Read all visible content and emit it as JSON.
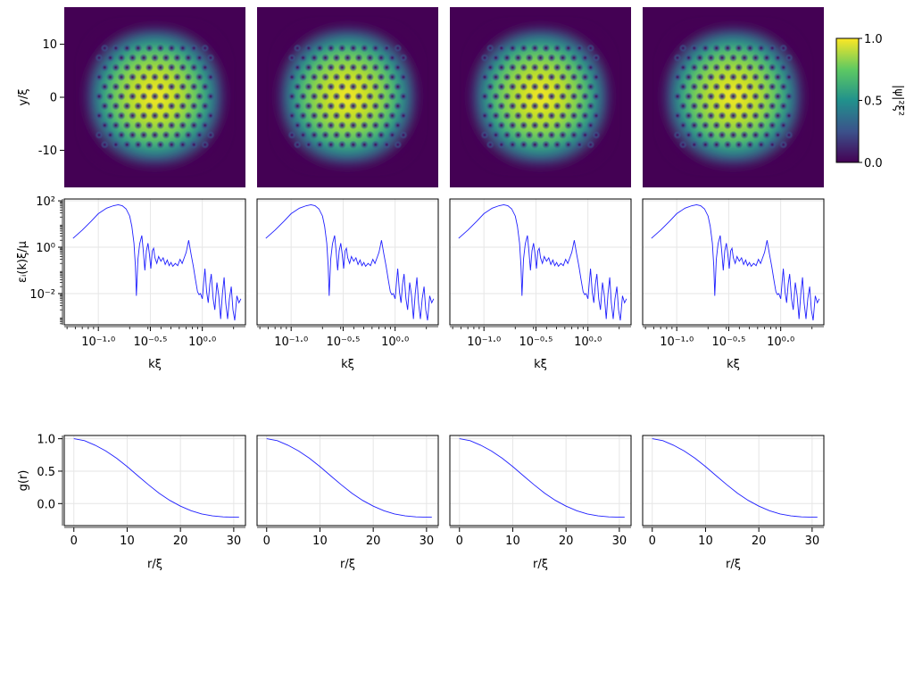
{
  "figure": {
    "colorbar": {
      "label": "|ψ|²ξ²",
      "ticks": [
        "1.0",
        "0.5",
        "0.0"
      ],
      "range": [
        0,
        1
      ],
      "colormap": [
        "#440154",
        "#3b528b",
        "#21918c",
        "#5ec962",
        "#fde725"
      ]
    }
  },
  "chart_data": [
    {
      "type": "heatmap",
      "panel": "density",
      "columns": 4,
      "ylabel": "y/ξ",
      "yticks": [
        "10",
        "0",
        "-10"
      ],
      "xlim": [
        -17,
        17
      ],
      "ylim": [
        -17,
        17
      ],
      "value_range": [
        0,
        1
      ],
      "description_values": {
        "lattice": "triangular vortex lattice",
        "cloud_radius": 12
      }
    },
    {
      "type": "line",
      "panel": "spectrum",
      "columns": 4,
      "xscale": "log",
      "yscale": "log",
      "xlabel": "kξ",
      "ylabel": "εᵢ(k)ξ/μ",
      "xticks": [
        "10⁻¹·⁰",
        "10⁻⁰·⁵",
        "10⁰·⁰"
      ],
      "yticks": [
        "10²",
        "10⁰",
        "10⁻²"
      ],
      "xlim": [
        0.047,
        2.6
      ],
      "ylim": [
        0.00045,
        120
      ],
      "series": [
        {
          "x": [
            0.057,
            0.07,
            0.085,
            0.1,
            0.12,
            0.14,
            0.155,
            0.17,
            0.185,
            0.2,
            0.21,
            0.22,
            0.227,
            0.232,
            0.24,
            0.25,
            0.262,
            0.27,
            0.28,
            0.29,
            0.3,
            0.31,
            0.32,
            0.33,
            0.34,
            0.35,
            0.365,
            0.38,
            0.4,
            0.42,
            0.44,
            0.46,
            0.48,
            0.5,
            0.52,
            0.55,
            0.58,
            0.61,
            0.64,
            0.67,
            0.7,
            0.74,
            0.78,
            0.82,
            0.86,
            0.9,
            0.93,
            0.96,
            1.0,
            1.03,
            1.06,
            1.1,
            1.14,
            1.18,
            1.22,
            1.27,
            1.32,
            1.38,
            1.44,
            1.5,
            1.56,
            1.62,
            1.68,
            1.75,
            1.82,
            1.9,
            1.97,
            2.05,
            2.15,
            2.25,
            2.35
          ],
          "y": [
            2.4,
            5.5,
            13,
            28,
            48,
            62,
            68,
            62,
            45,
            22,
            8,
            1.5,
            0.15,
            0.008,
            0.3,
            1.4,
            3.2,
            0.8,
            0.1,
            0.7,
            1.5,
            0.5,
            0.12,
            0.7,
            0.9,
            0.35,
            0.2,
            0.4,
            0.25,
            0.35,
            0.18,
            0.28,
            0.16,
            0.22,
            0.15,
            0.2,
            0.16,
            0.3,
            0.2,
            0.35,
            0.6,
            2.0,
            0.5,
            0.15,
            0.04,
            0.012,
            0.009,
            0.01,
            0.006,
            0.03,
            0.12,
            0.012,
            0.004,
            0.025,
            0.07,
            0.006,
            0.002,
            0.03,
            0.008,
            0.0008,
            0.01,
            0.05,
            0.004,
            0.0008,
            0.006,
            0.02,
            0.002,
            0.0007,
            0.008,
            0.004,
            0.006
          ]
        }
      ]
    },
    {
      "type": "line",
      "panel": "correlation",
      "columns": 4,
      "xlabel": "r/ξ",
      "ylabel": "g(r)",
      "xticks": [
        "0",
        "10",
        "20",
        "30"
      ],
      "yticks": [
        "1.0",
        "0.5",
        "0.0"
      ],
      "xlim": [
        -1.8,
        32.2
      ],
      "ylim": [
        -0.34,
        1.05
      ],
      "series": [
        {
          "x": [
            0,
            2,
            4,
            6,
            8,
            10,
            12,
            14,
            16,
            18,
            20,
            22,
            24,
            26,
            28,
            30,
            31
          ],
          "y": [
            1.0,
            0.97,
            0.9,
            0.81,
            0.7,
            0.57,
            0.43,
            0.29,
            0.16,
            0.05,
            -0.04,
            -0.11,
            -0.16,
            -0.19,
            -0.205,
            -0.21,
            -0.208
          ]
        }
      ]
    }
  ]
}
